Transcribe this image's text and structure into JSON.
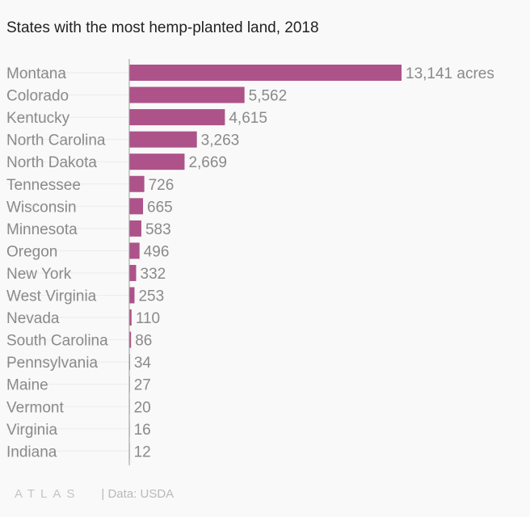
{
  "chart_data": {
    "type": "bar",
    "orientation": "horizontal",
    "title": "States with the most hemp-planted land, 2018",
    "categories": [
      "Montana",
      "Colorado",
      "Kentucky",
      "North Carolina",
      "North Dakota",
      "Tennessee",
      "Wisconsin",
      "Minnesota",
      "Oregon",
      "New York",
      "West Virginia",
      "Nevada",
      "South Carolina",
      "Pennsylvania",
      "Maine",
      "Vermont",
      "Virginia",
      "Indiana"
    ],
    "values": [
      13141,
      5562,
      4615,
      3263,
      2669,
      726,
      665,
      583,
      496,
      332,
      253,
      110,
      86,
      34,
      27,
      20,
      16,
      12
    ],
    "value_labels": [
      "13,141 acres",
      "5,562",
      "4,615",
      "3,263",
      "2,669",
      "726",
      "665",
      "583",
      "496",
      "332",
      "253",
      "110",
      "86",
      "34",
      "27",
      "20",
      "16",
      "12"
    ],
    "xlim": [
      0,
      13141
    ],
    "bar_color": "#ad5389",
    "grid": false
  },
  "footer": {
    "logo": "ATLAS",
    "source": "| Data: USDA"
  }
}
